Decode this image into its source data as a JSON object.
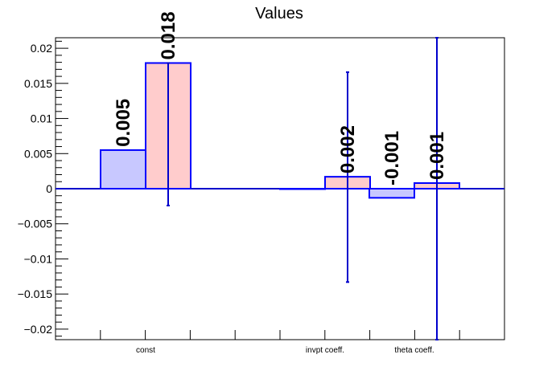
{
  "chart_data": {
    "type": "bar",
    "title": "Values",
    "categories": [
      "const",
      "invpt coeff.",
      "theta coeff."
    ],
    "series": [
      {
        "values": [
          0.0055,
          0.0,
          -0.0013
        ],
        "labels": [
          "0.005",
          "",
          "-0.001"
        ],
        "errors": [
          null,
          null,
          null
        ],
        "fill": "#c8c8ff",
        "stroke": "#0000ff"
      },
      {
        "values": [
          0.0179,
          0.0017,
          0.0008
        ],
        "labels": [
          "0.018",
          "0.002",
          "0.001"
        ],
        "errors": [
          [
            -0.0024,
            0.0179
          ],
          [
            -0.0133,
            0.0166
          ],
          [
            -0.0215,
            0.0215
          ]
        ],
        "fill": "#ffcccc",
        "stroke": "#0000ff"
      }
    ],
    "ylim": [
      -0.0215,
      0.0215
    ],
    "yticks": [
      0.02,
      0.015,
      0.01,
      0.005,
      0,
      -0.005,
      -0.01,
      -0.015,
      -0.02
    ],
    "ytick_labels": [
      "0.02",
      "0.015",
      "0.01",
      "0.005",
      "0",
      "−0.005",
      "−0.01",
      "−0.015",
      "−0.02"
    ],
    "colors": {
      "axis": "#000000",
      "error_bar": "#0000cc",
      "zero_line": "#0000cc"
    },
    "grid": false,
    "legend": "none"
  }
}
